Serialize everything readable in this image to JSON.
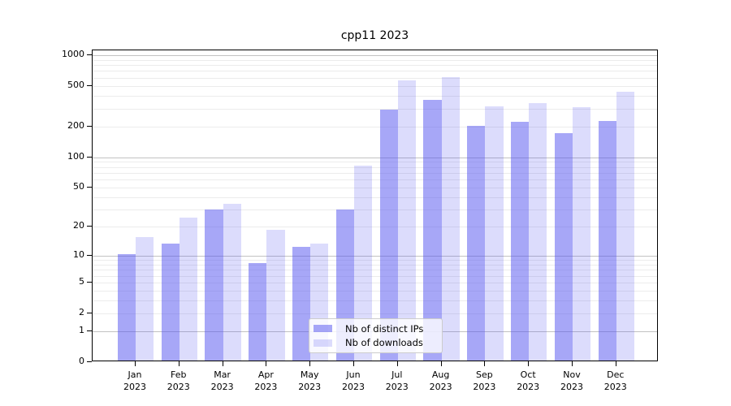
{
  "chart_data": {
    "type": "bar",
    "title": "cpp11 2023",
    "categories": [
      "Jan 2023",
      "Feb 2023",
      "Mar 2023",
      "Apr 2023",
      "May 2023",
      "Jun 2023",
      "Jul 2023",
      "Aug 2023",
      "Sep 2023",
      "Oct 2023",
      "Nov 2023",
      "Dec 2023"
    ],
    "series": [
      {
        "name": "Nb of distinct IPs",
        "color": "rgba(80,80,240,0.5)",
        "values": [
          10,
          13,
          29,
          8,
          12,
          29,
          285,
          355,
          195,
          215,
          165,
          220
        ]
      },
      {
        "name": "Nb of downloads",
        "color": "rgba(80,80,240,0.2)",
        "values": [
          15,
          24,
          33,
          18,
          13,
          80,
          550,
          590,
          305,
          330,
          300,
          420
        ]
      }
    ],
    "xlabel": "",
    "ylabel": "",
    "y_axis": {
      "scale": "log1p",
      "ticks": [
        0,
        1,
        2,
        5,
        10,
        20,
        50,
        100,
        200,
        500,
        1000
      ],
      "ylim": [
        0,
        1200
      ]
    },
    "grid": true,
    "legend_position": "lower center"
  },
  "colors": {
    "background": "#ffffff",
    "bar_distinct_ips": "rgba(80,80,240,0.5)",
    "bar_downloads": "rgba(80,80,240,0.2)",
    "grid_major": "#c2c2c2",
    "grid_minor": "#ececec",
    "spine": "#000000",
    "legend_border": "#cccccc"
  }
}
